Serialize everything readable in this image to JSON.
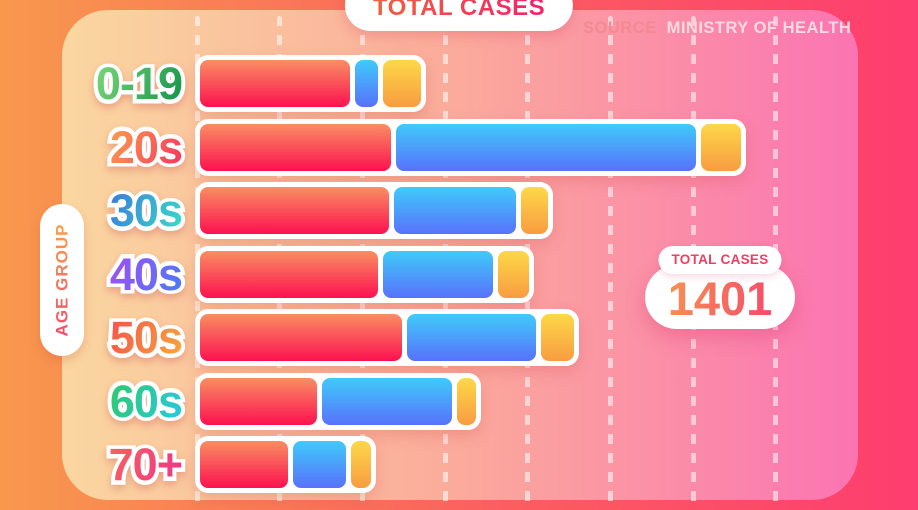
{
  "title_pill": {
    "text": "TOTAL CASES",
    "gradient": [
      "#F2613F",
      "#F1226B"
    ]
  },
  "source": {
    "label": "SOURCE",
    "value": "MINISTRY OF HEALTH",
    "label_color": "#F28A92",
    "value_color": "#FCD9E0"
  },
  "y_axis": {
    "title": "AGE GROUP",
    "gradient": [
      "#F84A6B",
      "#F9A04A"
    ]
  },
  "total_badge": {
    "label": "TOTAL CASES",
    "value": "1401",
    "label_color": "#F23E60",
    "value_gradient": [
      "#F9A14C",
      "#F43B70"
    ]
  },
  "colors": {
    "bg_gradient": [
      "#F8984D",
      "#FB5E60",
      "#FD3D6F"
    ],
    "panel_gradient": [
      "#FAD7A0",
      "#FBAC9B",
      "#FB74B2"
    ]
  },
  "chart_data": {
    "type": "bar",
    "orientation": "horizontal",
    "stacked": true,
    "title": "TOTAL CASES",
    "ylabel": "AGE GROUP",
    "xlabel": "",
    "total": 1401,
    "legend": "none",
    "x_axis": {
      "tick_labels": "none",
      "gridlines": 8,
      "gridline_style": "dashed-vertical"
    },
    "categories": [
      "0-19",
      "20s",
      "30s",
      "40s",
      "50s",
      "60s",
      "70+"
    ],
    "category_colors": [
      [
        "#7BD877",
        "#12934A"
      ],
      [
        "#F9A04C",
        "#F8335F"
      ],
      [
        "#3C78DE",
        "#37DEC6"
      ],
      [
        "#A44DF2",
        "#4A7CF7"
      ],
      [
        "#F4524B",
        "#F9A73C"
      ],
      [
        "#2FC96A",
        "#27C9E2"
      ],
      [
        "#F8635F",
        "#EF3387"
      ]
    ],
    "series": [
      {
        "name": "red",
        "gradient": [
          "#F98E62",
          "#FC1150"
        ],
        "values": [
          96,
          122,
          121,
          114,
          129,
          75,
          56
        ]
      },
      {
        "name": "blue",
        "gradient": [
          "#3FCBFA",
          "#5871FB"
        ],
        "values": [
          15,
          192,
          78,
          70,
          83,
          83,
          34
        ]
      },
      {
        "name": "yellow",
        "gradient": [
          "#FDD848",
          "#F89C41"
        ],
        "values": [
          24,
          26,
          17,
          20,
          21,
          12,
          13
        ]
      }
    ]
  }
}
